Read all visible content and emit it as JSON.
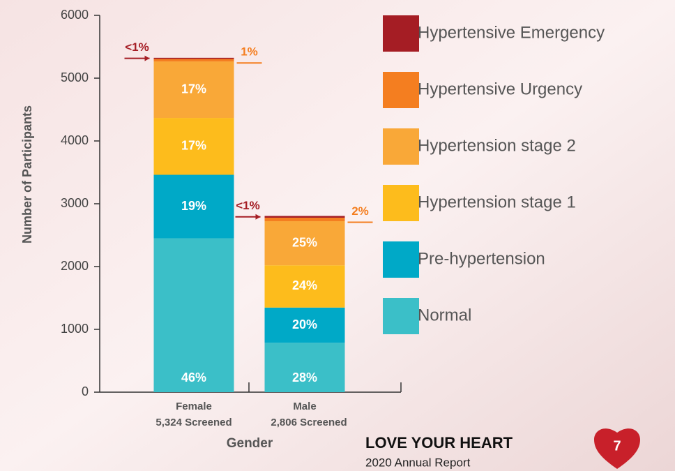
{
  "chart_data": {
    "type": "bar",
    "stacked": true,
    "y_label": "Number of Participants",
    "x_label": "Gender",
    "categories": [
      "Female",
      "Male"
    ],
    "category_notes": [
      "5,324 Screened",
      "2,806 Screened"
    ],
    "series": [
      {
        "name": "Normal",
        "color": "#3bbfc8",
        "values": [
          2449,
          786
        ],
        "percent_labels": [
          "46%",
          "28%"
        ]
      },
      {
        "name": "Pre-hypertension",
        "color": "#00a9c7",
        "values": [
          1012,
          561
        ],
        "percent_labels": [
          "19%",
          "20%"
        ]
      },
      {
        "name": "Hypertension stage 1",
        "color": "#fdbc1c",
        "values": [
          905,
          673
        ],
        "percent_labels": [
          "17%",
          "24%"
        ]
      },
      {
        "name": "Hypertension stage 2",
        "color": "#f9a838",
        "values": [
          900,
          702
        ],
        "percent_labels": [
          "17%",
          "25%"
        ]
      },
      {
        "name": "Hypertensive Urgency",
        "color": "#f47e20",
        "values": [
          40,
          56
        ],
        "percent_labels": [
          "1%",
          "2%"
        ]
      },
      {
        "name": "Hypertensive Emergency",
        "color": "#a51d24",
        "values": [
          18,
          28
        ],
        "percent_labels": [
          "<1%",
          "<1%"
        ]
      }
    ],
    "ylim": [
      0,
      6000
    ],
    "yticks": [
      0,
      1000,
      2000,
      3000,
      4000,
      5000,
      6000
    ]
  },
  "footer": {
    "title": "LOVE YOUR HEART",
    "subtitle": "2020 Annual Report",
    "page": "7"
  }
}
